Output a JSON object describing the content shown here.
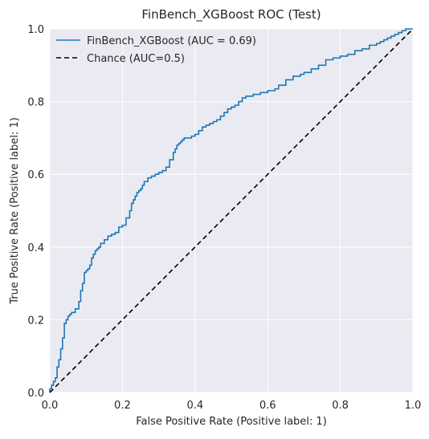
{
  "chart_data": {
    "type": "line",
    "title": "FinBench_XGBoost ROC (Test)",
    "xlabel": "False Positive Rate (Positive label: 1)",
    "ylabel": "True Positive Rate (Positive label: 1)",
    "xlim": [
      0,
      1
    ],
    "ylim": [
      0,
      1
    ],
    "xticks": [
      "0.0",
      "0.2",
      "0.4",
      "0.6",
      "0.8",
      "1.0"
    ],
    "yticks": [
      "0.0",
      "0.2",
      "0.4",
      "0.6",
      "0.8",
      "1.0"
    ],
    "grid": true,
    "legend_position": "top-left",
    "series": [
      {
        "name": "FinBench_XGBoost (AUC = 0.69)",
        "color": "#1f77b4",
        "style": "solid-step",
        "x": [
          0.0,
          0.005,
          0.01,
          0.015,
          0.02,
          0.025,
          0.03,
          0.035,
          0.04,
          0.045,
          0.05,
          0.055,
          0.06,
          0.07,
          0.08,
          0.085,
          0.09,
          0.095,
          0.1,
          0.105,
          0.11,
          0.115,
          0.12,
          0.125,
          0.13,
          0.135,
          0.14,
          0.15,
          0.16,
          0.17,
          0.18,
          0.19,
          0.2,
          0.21,
          0.22,
          0.225,
          0.23,
          0.235,
          0.24,
          0.245,
          0.25,
          0.255,
          0.26,
          0.27,
          0.28,
          0.29,
          0.3,
          0.31,
          0.32,
          0.33,
          0.34,
          0.345,
          0.35,
          0.355,
          0.36,
          0.365,
          0.37,
          0.38,
          0.39,
          0.4,
          0.41,
          0.42,
          0.43,
          0.44,
          0.45,
          0.46,
          0.47,
          0.48,
          0.49,
          0.5,
          0.51,
          0.52,
          0.53,
          0.54,
          0.55,
          0.56,
          0.58,
          0.6,
          0.62,
          0.63,
          0.65,
          0.67,
          0.69,
          0.7,
          0.71,
          0.72,
          0.74,
          0.76,
          0.78,
          0.8,
          0.82,
          0.84,
          0.86,
          0.88,
          0.9,
          0.91,
          0.92,
          0.93,
          0.94,
          0.95,
          0.96,
          0.97,
          0.98,
          0.99,
          1.0
        ],
        "y": [
          0.0,
          0.01,
          0.02,
          0.03,
          0.04,
          0.07,
          0.09,
          0.12,
          0.15,
          0.19,
          0.2,
          0.21,
          0.215,
          0.22,
          0.23,
          0.25,
          0.28,
          0.3,
          0.33,
          0.335,
          0.34,
          0.35,
          0.37,
          0.38,
          0.39,
          0.395,
          0.4,
          0.41,
          0.42,
          0.43,
          0.435,
          0.44,
          0.455,
          0.46,
          0.48,
          0.5,
          0.52,
          0.53,
          0.54,
          0.55,
          0.555,
          0.56,
          0.57,
          0.58,
          0.59,
          0.595,
          0.6,
          0.605,
          0.61,
          0.62,
          0.64,
          0.66,
          0.67,
          0.68,
          0.685,
          0.69,
          0.695,
          0.7,
          0.7,
          0.705,
          0.71,
          0.72,
          0.73,
          0.735,
          0.74,
          0.745,
          0.75,
          0.76,
          0.77,
          0.78,
          0.785,
          0.79,
          0.8,
          0.81,
          0.815,
          0.815,
          0.82,
          0.825,
          0.83,
          0.835,
          0.845,
          0.86,
          0.87,
          0.875,
          0.88,
          0.88,
          0.89,
          0.9,
          0.915,
          0.92,
          0.925,
          0.93,
          0.94,
          0.945,
          0.955,
          0.96,
          0.965,
          0.97,
          0.975,
          0.98,
          0.985,
          0.99,
          0.995,
          1.0,
          1.0
        ]
      },
      {
        "name": "Chance (AUC=0.5)",
        "color": "#000000",
        "style": "dashed",
        "x": [
          0,
          1
        ],
        "y": [
          0,
          1
        ]
      }
    ]
  }
}
